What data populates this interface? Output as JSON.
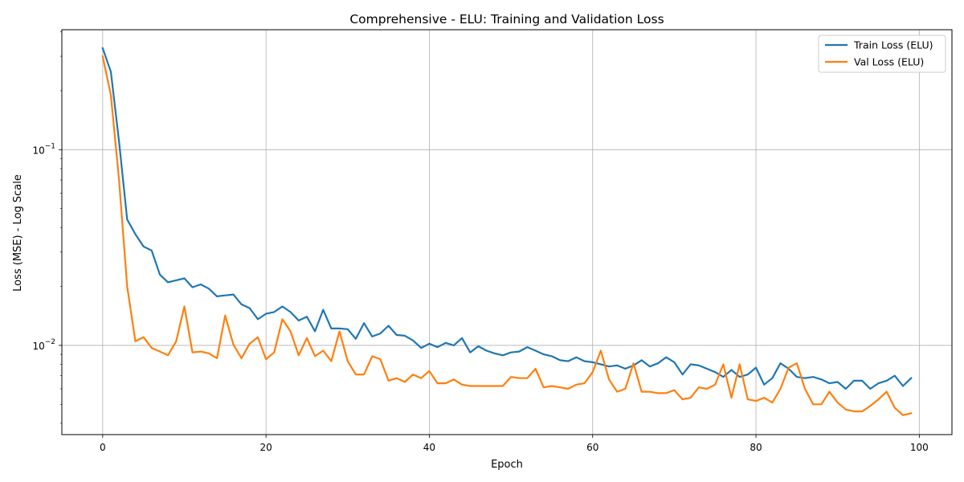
{
  "chart_data": {
    "type": "line",
    "title": "Comprehensive - ELU: Training and Validation Loss",
    "xlabel": "Epoch",
    "ylabel": "Loss (MSE) - Log Scale",
    "xlim": [
      -5,
      104
    ],
    "ylim": [
      0.0035,
      0.41
    ],
    "yscale": "log",
    "grid": true,
    "legend_position": "top-right",
    "x_ticks": [
      0,
      20,
      40,
      60,
      80,
      100
    ],
    "x_tick_labels": [
      "0",
      "20",
      "40",
      "60",
      "80",
      "100"
    ],
    "y_major_ticks": [
      0.01,
      0.1
    ],
    "y_tick_labels": [
      {
        "base": "10",
        "exp": "−2"
      },
      {
        "base": "10",
        "exp": "−1"
      }
    ],
    "series": [
      {
        "name": "Train Loss (ELU)",
        "color": "#1f77b4",
        "x": [
          0,
          1,
          2,
          3,
          4,
          5,
          6,
          7,
          8,
          9,
          10,
          11,
          12,
          13,
          14,
          15,
          16,
          17,
          18,
          19,
          20,
          21,
          22,
          23,
          24,
          25,
          26,
          27,
          28,
          29,
          30,
          31,
          32,
          33,
          34,
          35,
          36,
          37,
          38,
          39,
          40,
          41,
          42,
          43,
          44,
          45,
          46,
          47,
          48,
          49,
          50,
          51,
          52,
          53,
          54,
          55,
          56,
          57,
          58,
          59,
          60,
          61,
          62,
          63,
          64,
          65,
          66,
          67,
          68,
          69,
          70,
          71,
          72,
          73,
          74,
          75,
          76,
          77,
          78,
          79,
          80,
          81,
          82,
          83,
          84,
          85,
          86,
          87,
          88,
          89,
          90,
          91,
          92,
          93,
          94,
          95,
          96,
          97,
          98,
          99
        ],
        "values": [
          0.33,
          0.25,
          0.11,
          0.044,
          0.037,
          0.032,
          0.0305,
          0.023,
          0.021,
          0.0215,
          0.022,
          0.0198,
          0.0205,
          0.0195,
          0.0178,
          0.018,
          0.0182,
          0.0162,
          0.0155,
          0.0136,
          0.0145,
          0.0148,
          0.0158,
          0.0148,
          0.0134,
          0.014,
          0.0118,
          0.0152,
          0.0122,
          0.0122,
          0.0121,
          0.0108,
          0.013,
          0.0111,
          0.0115,
          0.0126,
          0.0113,
          0.0112,
          0.0106,
          0.0097,
          0.0102,
          0.0098,
          0.0103,
          0.01,
          0.0109,
          0.0092,
          0.0099,
          0.0094,
          0.0091,
          0.0089,
          0.0092,
          0.0093,
          0.0098,
          0.0094,
          0.009,
          0.0088,
          0.0084,
          0.0083,
          0.0087,
          0.0083,
          0.0082,
          0.008,
          0.0078,
          0.0079,
          0.0076,
          0.0079,
          0.0084,
          0.0078,
          0.0081,
          0.0087,
          0.0082,
          0.0071,
          0.008,
          0.0079,
          0.0076,
          0.0073,
          0.0069,
          0.0075,
          0.0069,
          0.0071,
          0.0077,
          0.0063,
          0.0068,
          0.0081,
          0.0076,
          0.0069,
          0.0068,
          0.0069,
          0.0067,
          0.0064,
          0.0065,
          0.006,
          0.0066,
          0.0066,
          0.006,
          0.0064,
          0.0066,
          0.007,
          0.0062,
          0.0068
        ]
      },
      {
        "name": "Val Loss (ELU)",
        "color": "#ff7f0e",
        "x": [
          0,
          1,
          2,
          3,
          4,
          5,
          6,
          7,
          8,
          9,
          10,
          11,
          12,
          13,
          14,
          15,
          16,
          17,
          18,
          19,
          20,
          21,
          22,
          23,
          24,
          25,
          26,
          27,
          28,
          29,
          30,
          31,
          32,
          33,
          34,
          35,
          36,
          37,
          38,
          39,
          40,
          41,
          42,
          43,
          44,
          45,
          46,
          47,
          48,
          49,
          50,
          51,
          52,
          53,
          54,
          55,
          56,
          57,
          58,
          59,
          60,
          61,
          62,
          63,
          64,
          65,
          66,
          67,
          68,
          69,
          70,
          71,
          72,
          73,
          74,
          75,
          76,
          77,
          78,
          79,
          80,
          81,
          82,
          83,
          84,
          85,
          86,
          87,
          88,
          89,
          90,
          91,
          92,
          93,
          94,
          95,
          96,
          97,
          98,
          99
        ],
        "values": [
          0.3,
          0.19,
          0.07,
          0.02,
          0.0105,
          0.011,
          0.0097,
          0.0093,
          0.0089,
          0.0105,
          0.0158,
          0.0092,
          0.0093,
          0.0091,
          0.0086,
          0.0142,
          0.0101,
          0.0086,
          0.0102,
          0.011,
          0.0085,
          0.0092,
          0.0136,
          0.0118,
          0.0089,
          0.0109,
          0.0088,
          0.0094,
          0.0083,
          0.0118,
          0.0083,
          0.0071,
          0.0071,
          0.0088,
          0.0085,
          0.0066,
          0.0068,
          0.0065,
          0.0071,
          0.0068,
          0.0074,
          0.0064,
          0.0064,
          0.0067,
          0.0063,
          0.0062,
          0.0062,
          0.0062,
          0.0062,
          0.0062,
          0.0069,
          0.0068,
          0.0068,
          0.0076,
          0.0061,
          0.0062,
          0.0061,
          0.006,
          0.0063,
          0.0064,
          0.0073,
          0.0094,
          0.0067,
          0.0058,
          0.006,
          0.0081,
          0.0058,
          0.0058,
          0.0057,
          0.0057,
          0.0059,
          0.0053,
          0.0054,
          0.0061,
          0.006,
          0.0063,
          0.008,
          0.0054,
          0.008,
          0.0053,
          0.0052,
          0.0054,
          0.0051,
          0.006,
          0.0077,
          0.0081,
          0.006,
          0.005,
          0.005,
          0.0058,
          0.0051,
          0.0047,
          0.0046,
          0.0046,
          0.0049,
          0.0053,
          0.0058,
          0.0048,
          0.0044,
          0.0045
        ]
      }
    ]
  }
}
